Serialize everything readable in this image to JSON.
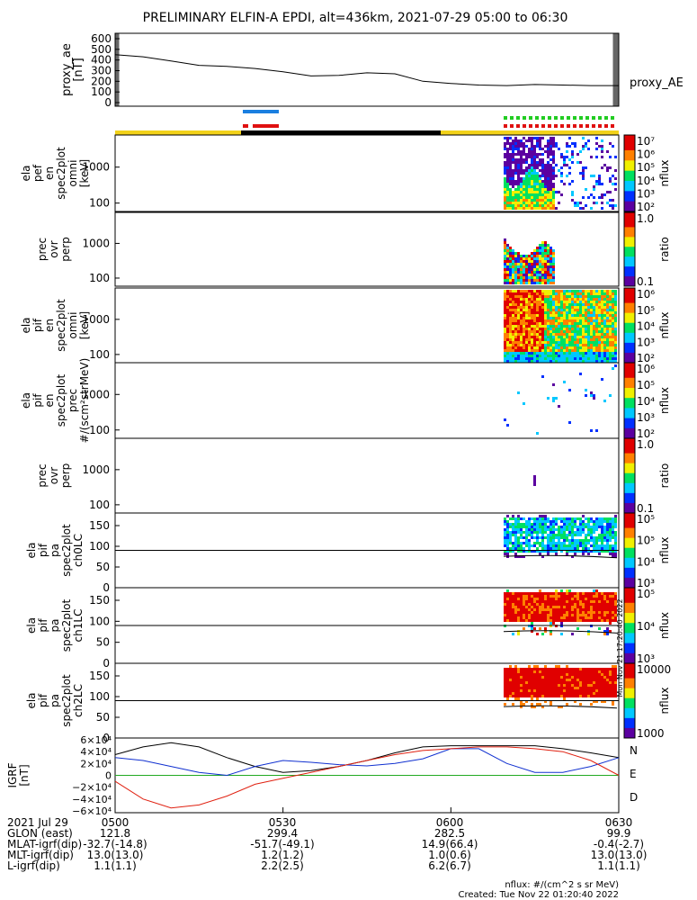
{
  "title": "PRELIMINARY ELFIN-A EPDI, alt=436km, 2021-07-29 05:00 to 06:30",
  "colors": {
    "bar_yellow": "#f2d21a",
    "bar_black": "#000000",
    "blue_bar": "#1a7fe0",
    "red_bar": "#e01010",
    "green_dots": "#22cc22",
    "red_dots": "#e01010"
  },
  "chart_data": [
    {
      "type": "line",
      "id": "proxy_ae",
      "ylabel": "proxy_ae\n[nT]",
      "yticks": [
        "600",
        "500",
        "400",
        "300",
        "200",
        "100",
        "0"
      ],
      "ylim": [
        0,
        600
      ],
      "series_label": "proxy_AE",
      "x": [
        "05:00",
        "05:05",
        "05:10",
        "05:15",
        "05:20",
        "05:25",
        "05:30",
        "05:35",
        "05:40",
        "05:45",
        "05:50",
        "05:55",
        "06:00",
        "06:05",
        "06:10",
        "06:15",
        "06:20",
        "06:25",
        "06:30"
      ],
      "values": [
        450,
        430,
        390,
        350,
        340,
        320,
        290,
        250,
        255,
        280,
        270,
        200,
        180,
        165,
        160,
        170,
        165,
        160,
        160
      ]
    },
    {
      "type": "heatmap",
      "id": "ela_pef_en_spec2plot_omni",
      "ylabel": "ela\npef\nen\nspec2plot\nomni\n[keV]",
      "yticks": [
        "1000",
        "100"
      ],
      "colorbar_ticks": [
        "10⁷",
        "10⁶",
        "10⁵",
        "10⁴",
        "10³",
        "10²"
      ],
      "colorbar_label": "nflux"
    },
    {
      "type": "heatmap",
      "id": "prec_ovr_perp_e",
      "ylabel": "prec\novr\nperp",
      "yticks": [
        "1000",
        "100"
      ],
      "colorbar_ticks": [
        "1.0",
        "0.1"
      ],
      "colorbar_label": "ratio"
    },
    {
      "type": "heatmap",
      "id": "ela_pif_en_spec2plot_omni",
      "ylabel": "ela\npif\nen\nspec2plot\nomni\n[keV]",
      "yticks": [
        "1000",
        "100"
      ],
      "colorbar_ticks": [
        "10⁶",
        "10⁵",
        "10⁴",
        "10³",
        "10²"
      ],
      "colorbar_label": "nflux"
    },
    {
      "type": "heatmap",
      "id": "ela_pif_en_spec2plot_prec",
      "ylabel": "ela\npif\nen\nspec2plot\nprec\n#/(scm²strMeV)",
      "yticks": [
        "1000",
        "100"
      ],
      "colorbar_ticks": [
        "10⁶",
        "10⁵",
        "10⁴",
        "10³",
        "10²"
      ],
      "colorbar_label": "nflux"
    },
    {
      "type": "heatmap",
      "id": "prec_ovr_perp_i",
      "ylabel": "prec\novr\nperp",
      "yticks": [
        "1000",
        "100"
      ],
      "colorbar_ticks": [
        "1.0",
        "0.1"
      ],
      "colorbar_label": "ratio"
    },
    {
      "type": "heatmap",
      "id": "ela_pif_pa_ch0LC",
      "ylabel": "ela\npif\npa\nspec2plot\nch0LC",
      "yticks": [
        "150",
        "100",
        "50",
        "0"
      ],
      "colorbar_ticks": [
        "10⁵",
        "10⁵",
        "10⁴",
        "10³"
      ],
      "colorbar_label": "nflux"
    },
    {
      "type": "heatmap",
      "id": "ela_pif_pa_ch1LC",
      "ylabel": "ela\npif\npa\nspec2plot\nch1LC",
      "yticks": [
        "150",
        "100",
        "50",
        "0"
      ],
      "colorbar_ticks": [
        "10⁵",
        "10⁴",
        "10³"
      ],
      "colorbar_label": "nflux"
    },
    {
      "type": "heatmap",
      "id": "ela_pif_pa_ch2LC",
      "ylabel": "ela\npif\npa\nspec2plot\nch2LC",
      "yticks": [
        "150",
        "100",
        "50",
        "0"
      ],
      "colorbar_ticks": [
        "10000",
        "1000"
      ],
      "colorbar_label": "nflux"
    },
    {
      "type": "line",
      "id": "igrf",
      "ylabel": "IGRF\n[nT]",
      "yticks": [
        "6×10⁴",
        "4×10⁴",
        "2×10⁴",
        "0",
        "−2×10⁴",
        "−4×10⁴",
        "−6×10⁴"
      ],
      "ylim": [
        -60000,
        60000
      ],
      "legend": [
        "N",
        "E",
        "D"
      ],
      "x": [
        "05:00",
        "05:05",
        "05:10",
        "05:15",
        "05:20",
        "05:25",
        "05:30",
        "05:35",
        "05:40",
        "05:45",
        "05:50",
        "05:55",
        "06:00",
        "06:05",
        "06:10",
        "06:15",
        "06:20",
        "06:25",
        "06:30"
      ],
      "series": [
        {
          "name": "N",
          "values": [
            35000,
            48000,
            55000,
            48000,
            30000,
            15000,
            5000,
            8000,
            15000,
            25000,
            38000,
            48000,
            50000,
            50000,
            50000,
            50000,
            45000,
            38000,
            30000
          ]
        },
        {
          "name": "E",
          "values": [
            30000,
            25000,
            15000,
            5000,
            0,
            15000,
            25000,
            22000,
            18000,
            16000,
            20000,
            28000,
            45000,
            45000,
            20000,
            5000,
            5000,
            15000,
            30000
          ]
        },
        {
          "name": "D",
          "values": [
            -10000,
            -40000,
            -55000,
            -50000,
            -35000,
            -15000,
            -5000,
            5000,
            15000,
            25000,
            35000,
            42000,
            45000,
            48000,
            48000,
            45000,
            40000,
            25000,
            0
          ]
        }
      ]
    }
  ],
  "footer": {
    "rows": [
      {
        "label": "2021 Jul 29",
        "values": [
          "0500",
          "0530",
          "0600",
          "0630"
        ]
      },
      {
        "label": "GLON (east)",
        "values": [
          "121.8",
          "299.4",
          "282.5",
          "99.9"
        ]
      },
      {
        "label": "MLAT-igrf(dip)",
        "values": [
          "-32.7(-14.8)",
          "-51.7(-49.1)",
          "14.9(66.4)",
          "-0.4(-2.7)"
        ]
      },
      {
        "label": "MLT-igrf(dip)",
        "values": [
          "13.0(13.0)",
          "1.2(1.2)",
          "1.0(0.6)",
          "13.0(13.0)"
        ]
      },
      {
        "label": "L-igrf(dip)",
        "values": [
          "1.1(1.1)",
          "2.2(2.5)",
          "6.2(6.7)",
          "1.1(1.1)"
        ]
      }
    ],
    "units_note": "nflux: #/(cm^2 s sr MeV)",
    "created": "Created: Tue Nov 22 01:20:40 2022",
    "side_stamp": "Mon Nov 21 17:20:40 2022"
  }
}
